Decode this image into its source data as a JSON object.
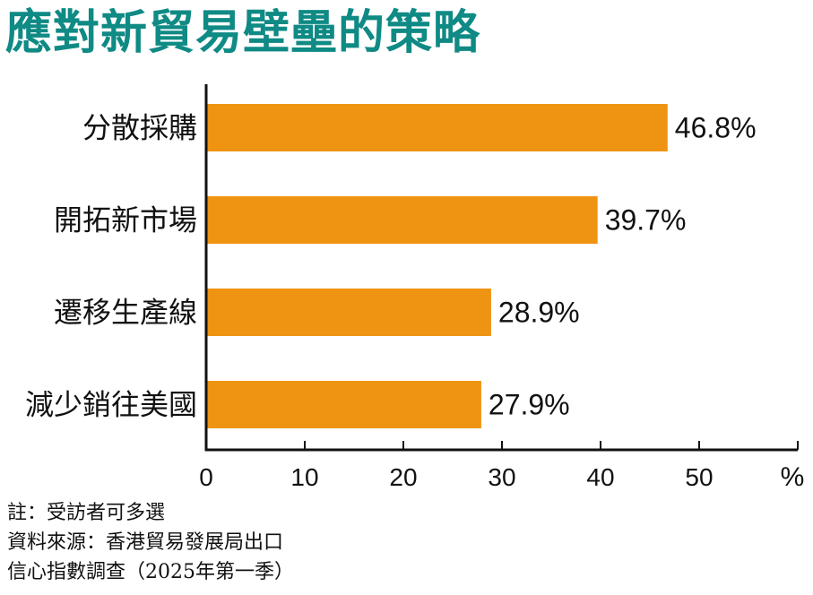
{
  "chart_data": {
    "type": "bar",
    "orientation": "horizontal",
    "title": "應對新貿易壁壘的策略",
    "categories": [
      "分散採購",
      "開拓新市場",
      "遷移生產線",
      "減少銷往美國"
    ],
    "values": [
      46.8,
      39.7,
      28.9,
      27.9
    ],
    "value_labels": [
      "46.8%",
      "39.7%",
      "28.9%",
      "27.9%"
    ],
    "x_ticks": [
      "0",
      "10",
      "20",
      "30",
      "40",
      "50"
    ],
    "xlim": [
      0,
      60
    ],
    "unit": "%",
    "grid": false,
    "bar_color": "#ee9412",
    "title_color": "#0f8a84"
  },
  "notes": {
    "line1": "註：受訪者可多選",
    "line2": "資料來源：香港貿易發展局出口",
    "line3": "信心指數調查（2025年第一季）"
  }
}
